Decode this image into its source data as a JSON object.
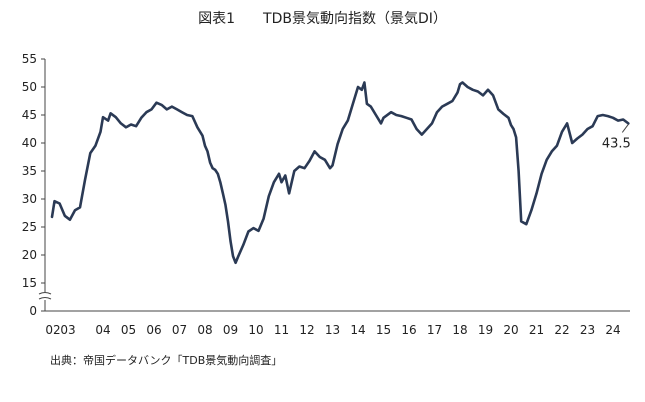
{
  "figure": {
    "title_label": "図表1",
    "title_text": "TDB景気動向指数（景気DI）",
    "source": "出典：帝国データバンク「TDB景気動向調査」"
  },
  "chart_data": {
    "type": "line",
    "title": "図表1　　TDB景気動向指数（景気DI）",
    "xlabel": "",
    "ylabel": "",
    "ylim": [
      0,
      55
    ],
    "axis_break": [
      0,
      15
    ],
    "yticks": [
      "0",
      "15",
      "20",
      "25",
      "30",
      "35",
      "40",
      "45",
      "50",
      "55"
    ],
    "xticks": [
      "02",
      "03",
      "04",
      "05",
      "06",
      "07",
      "08",
      "09",
      "10",
      "11",
      "12",
      "13",
      "14",
      "15",
      "16",
      "17",
      "18",
      "19",
      "20",
      "21",
      "22",
      "23",
      "24"
    ],
    "grid": false,
    "legend": "none",
    "line_color": "#2b3a55",
    "annotation": {
      "text": "43.5",
      "x": 2024.6,
      "y": 43.5
    },
    "series": [
      {
        "x": [
          2002.0,
          2002.1,
          2002.3,
          2002.5,
          2002.7,
          2002.9,
          2003.1,
          2003.3,
          2003.5,
          2003.7,
          2003.9,
          2004.0,
          2004.2,
          2004.3,
          2004.5,
          2004.7,
          2004.9,
          2005.1,
          2005.3,
          2005.5,
          2005.7,
          2005.9,
          2006.1,
          2006.3,
          2006.5,
          2006.7,
          2006.9,
          2007.1,
          2007.3,
          2007.5,
          2007.7,
          2007.9,
          2008.0,
          2008.1,
          2008.2,
          2008.3,
          2008.4,
          2008.5,
          2008.6,
          2008.7,
          2008.8,
          2008.9,
          2009.0,
          2009.1,
          2009.2,
          2009.3,
          2009.5,
          2009.7,
          2009.9,
          2010.1,
          2010.3,
          2010.5,
          2010.7,
          2010.9,
          2011.0,
          2011.15,
          2011.3,
          2011.5,
          2011.7,
          2011.9,
          2012.1,
          2012.3,
          2012.5,
          2012.7,
          2012.9,
          2013.0,
          2013.2,
          2013.4,
          2013.6,
          2013.8,
          2014.0,
          2014.15,
          2014.25,
          2014.35,
          2014.5,
          2014.7,
          2014.9,
          2015.0,
          2015.3,
          2015.5,
          2015.7,
          2015.9,
          2016.1,
          2016.3,
          2016.5,
          2016.7,
          2016.9,
          2017.1,
          2017.3,
          2017.5,
          2017.7,
          2017.9,
          2018.0,
          2018.1,
          2018.3,
          2018.5,
          2018.7,
          2018.9,
          2019.1,
          2019.3,
          2019.5,
          2019.7,
          2019.9,
          2020.0,
          2020.1,
          2020.2,
          2020.3,
          2020.4,
          2020.6,
          2020.8,
          2021.0,
          2021.2,
          2021.4,
          2021.6,
          2021.8,
          2022.0,
          2022.2,
          2022.4,
          2022.6,
          2022.8,
          2023.0,
          2023.2,
          2023.4,
          2023.6,
          2023.8,
          2024.0,
          2024.2,
          2024.4,
          2024.6
        ],
        "y": [
          26.8,
          29.6,
          29.2,
          27.0,
          26.3,
          28.0,
          28.5,
          33.5,
          38.2,
          39.5,
          42.0,
          44.6,
          44.0,
          45.3,
          44.6,
          43.5,
          42.8,
          43.3,
          43.0,
          44.5,
          45.5,
          46.0,
          47.2,
          46.8,
          46.0,
          46.5,
          46.0,
          45.5,
          45.0,
          44.8,
          42.8,
          41.3,
          39.5,
          38.5,
          36.5,
          35.5,
          35.2,
          34.5,
          33.0,
          31.0,
          29.0,
          26.0,
          22.5,
          19.8,
          18.6,
          19.7,
          21.8,
          24.2,
          24.8,
          24.3,
          26.5,
          30.5,
          33.0,
          34.5,
          33.0,
          34.2,
          31.0,
          35.0,
          35.8,
          35.5,
          36.8,
          38.5,
          37.5,
          37.0,
          35.5,
          36.0,
          39.8,
          42.5,
          44.0,
          47.0,
          50.0,
          49.5,
          50.8,
          47.0,
          46.5,
          45.0,
          43.5,
          44.5,
          45.5,
          45.0,
          44.8,
          44.5,
          44.2,
          42.5,
          41.5,
          42.5,
          43.5,
          45.5,
          46.5,
          47.0,
          47.5,
          49.0,
          50.5,
          50.8,
          50.0,
          49.5,
          49.2,
          48.5,
          49.5,
          48.5,
          46.0,
          45.2,
          44.5,
          43.2,
          42.5,
          41.0,
          35.0,
          26.0,
          25.5,
          28.0,
          31.0,
          34.5,
          37.0,
          38.5,
          39.5,
          42.0,
          43.5,
          40.0,
          40.8,
          41.5,
          42.5,
          43.0,
          44.8,
          45.0,
          44.8,
          44.5,
          44.0,
          44.2,
          43.5
        ]
      }
    ]
  }
}
